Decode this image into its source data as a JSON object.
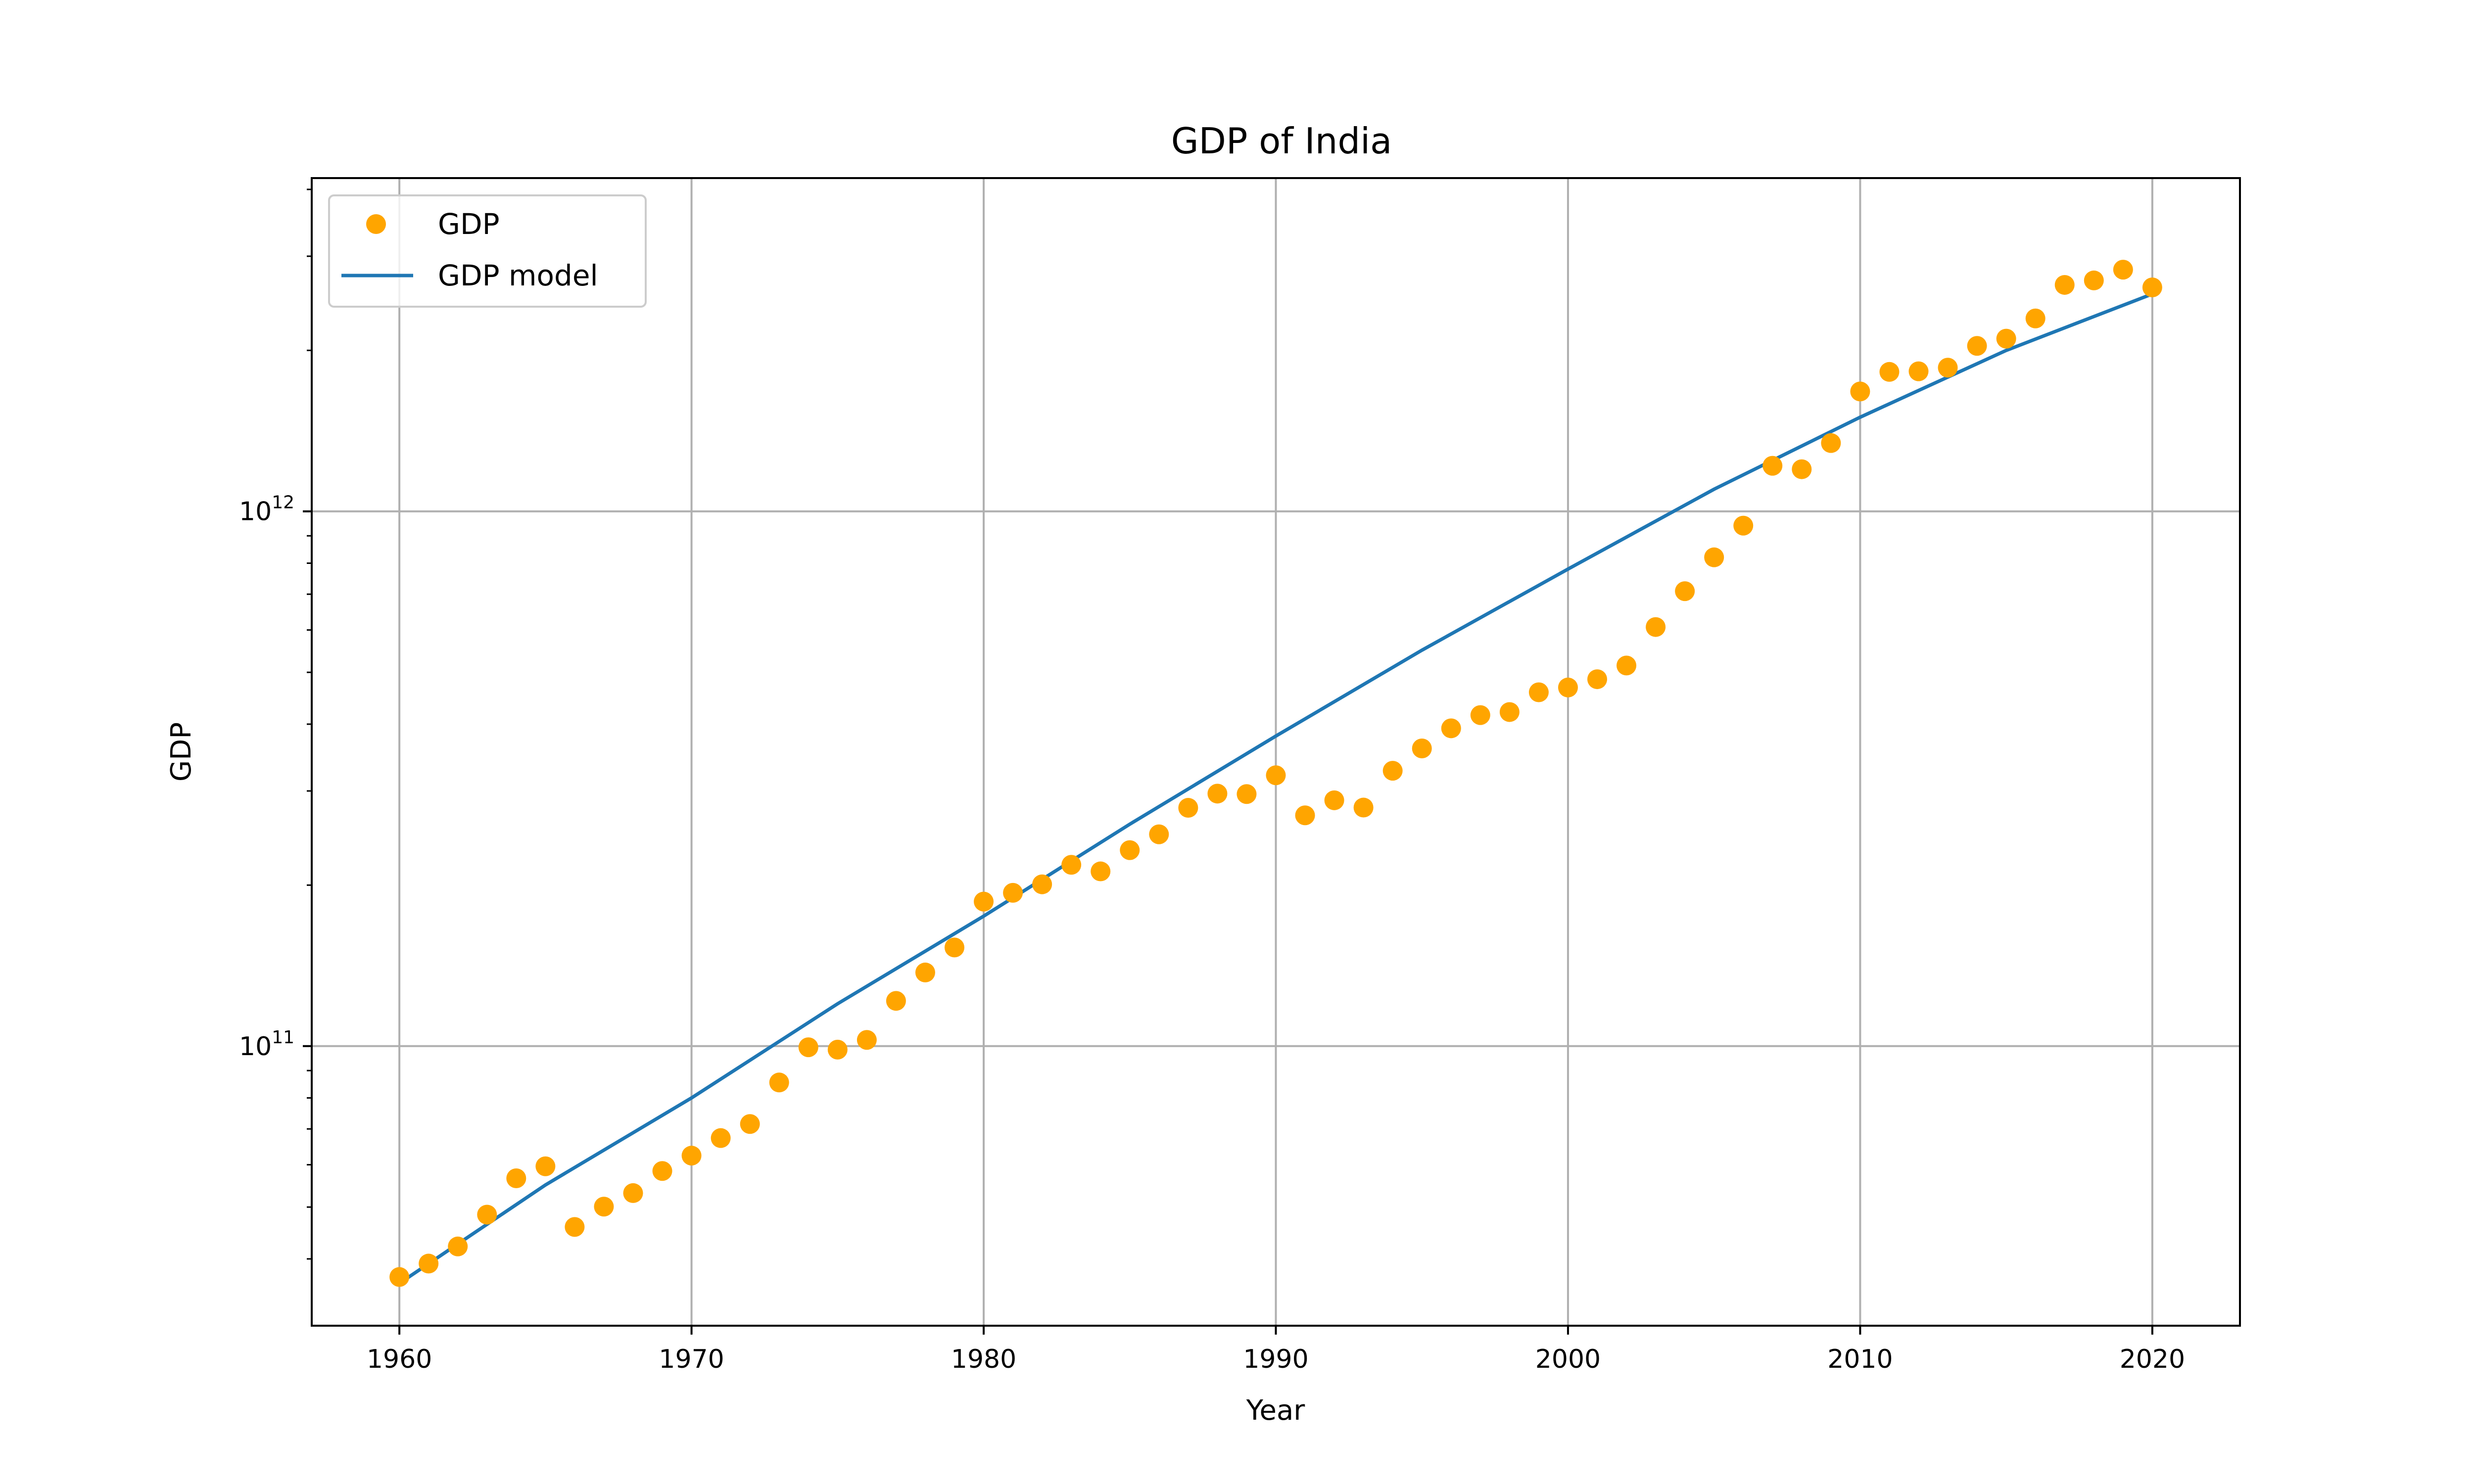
{
  "chart_data": {
    "type": "scatter",
    "title": "GDP of India",
    "xlabel": "Year",
    "ylabel": "GDP",
    "yscale": "log",
    "xlim": [
      1957,
      2023
    ],
    "ylim": [
      30000000000,
      4200000000000
    ],
    "grid": true,
    "legend_placement": "top-left",
    "colors": {
      "points": "#ffa500",
      "line": "#1f77b4"
    },
    "x_ticks": [
      1960,
      1970,
      1980,
      1990,
      2000,
      2010,
      2020
    ],
    "x_tick_labels": [
      "1960",
      "1970",
      "1980",
      "1990",
      "2000",
      "2010",
      "2020"
    ],
    "y_major_ticks": [
      {
        "value": 100000000000,
        "base": "10",
        "exp": "11"
      },
      {
        "value": 1000000000000,
        "base": "10",
        "exp": "12"
      }
    ],
    "y_minor_ticks": [
      40000000000,
      50000000000,
      60000000000,
      70000000000,
      80000000000,
      90000000000,
      200000000000,
      300000000000,
      400000000000,
      500000000000,
      600000000000,
      700000000000,
      800000000000,
      900000000000,
      2000000000000,
      3000000000000,
      4000000000000
    ],
    "series": [
      {
        "name": "GDP",
        "kind": "scatter",
        "x": [
          1960,
          1961,
          1962,
          1963,
          1964,
          1965,
          1966,
          1967,
          1968,
          1969,
          1970,
          1971,
          1972,
          1973,
          1974,
          1975,
          1976,
          1977,
          1978,
          1979,
          1980,
          1981,
          1982,
          1983,
          1984,
          1985,
          1986,
          1987,
          1988,
          1989,
          1990,
          1991,
          1992,
          1993,
          1994,
          1995,
          1996,
          1997,
          1998,
          1999,
          2000,
          2001,
          2002,
          2003,
          2004,
          2005,
          2006,
          2007,
          2008,
          2009,
          2010,
          2011,
          2012,
          2013,
          2014,
          2015,
          2016,
          2017,
          2018,
          2019,
          2020
        ],
        "values": [
          37000000000,
          39200000000,
          42200000000,
          48400000000,
          56600000000,
          59600000000,
          45900000000,
          50100000000,
          53100000000,
          58400000000,
          62400000000,
          67300000000,
          71500000000,
          85500000000,
          99500000000,
          98500000000,
          102700000000,
          121500000000,
          137300000000,
          152900000000,
          186300000000,
          193500000000,
          200700000000,
          218300000000,
          212200000000,
          232500000000,
          248900000000,
          279000000000,
          296600000000,
          296000000000,
          321000000000,
          270100000000,
          288200000000,
          279300000000,
          327300000000,
          360300000000,
          392900000000,
          415900000000,
          421400000000,
          458800000000,
          468400000000,
          485400000000,
          514900000000,
          607700000000,
          709100000000,
          820400000000,
          940300000000,
          1216700000000,
          1198900000000,
          1341900000000,
          1675600000000,
          1823100000000,
          1827600000000,
          1856700000000,
          2039100000000,
          2103600000000,
          2294800000000,
          2651500000000,
          2702900000000,
          2831600000000,
          2622900000000
        ]
      },
      {
        "name": "GDP model",
        "kind": "line",
        "x": [
          1960,
          1965,
          1970,
          1975,
          1980,
          1985,
          1990,
          1995,
          2000,
          2005,
          2010,
          2015,
          2020
        ],
        "values": [
          36000000000,
          55000000000,
          80000000000,
          120000000000,
          175000000000,
          260000000000,
          380000000000,
          550000000000,
          780000000000,
          1100000000000,
          1500000000000,
          2000000000000,
          2550000000000
        ]
      }
    ]
  }
}
